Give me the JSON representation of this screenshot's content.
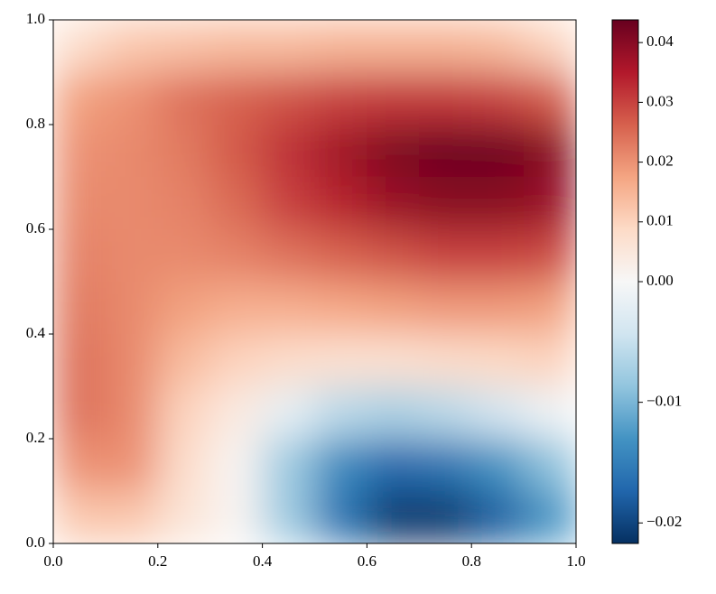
{
  "chart_data": {
    "type": "heatmap",
    "colormap": "RdBu_r",
    "x": [
      0.05,
      0.15,
      0.25,
      0.35,
      0.45,
      0.55,
      0.65,
      0.75,
      0.85,
      0.95
    ],
    "y": [
      0.95,
      0.85,
      0.75,
      0.65,
      0.55,
      0.45,
      0.35,
      0.25,
      0.15,
      0.05
    ],
    "z": [
      [
        0.008,
        0.012,
        0.013,
        0.014,
        0.014,
        0.015,
        0.015,
        0.015,
        0.014,
        0.01
      ],
      [
        0.018,
        0.02,
        0.024,
        0.026,
        0.028,
        0.03,
        0.031,
        0.031,
        0.03,
        0.027
      ],
      [
        0.02,
        0.021,
        0.023,
        0.027,
        0.032,
        0.037,
        0.041,
        0.043,
        0.043,
        0.04
      ],
      [
        0.021,
        0.021,
        0.022,
        0.025,
        0.03,
        0.034,
        0.038,
        0.04,
        0.04,
        0.038
      ],
      [
        0.022,
        0.021,
        0.021,
        0.022,
        0.024,
        0.026,
        0.028,
        0.03,
        0.03,
        0.029
      ],
      [
        0.023,
        0.021,
        0.018,
        0.016,
        0.016,
        0.017,
        0.018,
        0.019,
        0.019,
        0.018
      ],
      [
        0.024,
        0.021,
        0.014,
        0.01,
        0.008,
        0.007,
        0.007,
        0.008,
        0.009,
        0.01
      ],
      [
        0.024,
        0.021,
        0.01,
        0.004,
        -0.002,
        -0.006,
        -0.007,
        -0.006,
        -0.004,
        -0.001
      ],
      [
        0.02,
        0.02,
        0.008,
        0.001,
        -0.008,
        -0.014,
        -0.017,
        -0.016,
        -0.013,
        -0.009
      ],
      [
        0.012,
        0.012,
        0.006,
        0.001,
        -0.008,
        -0.016,
        -0.021,
        -0.021,
        -0.018,
        -0.013
      ]
    ],
    "xlim": [
      0,
      1
    ],
    "ylim": [
      0,
      1
    ],
    "xticks": [
      {
        "value": 0,
        "label": "0.0"
      },
      0.2,
      0.4,
      0.6,
      0.8,
      {
        "value": 1,
        "label": "1.0"
      }
    ],
    "yticks": [
      {
        "value": 0,
        "label": "0.0"
      },
      0.2,
      0.4,
      0.6,
      0.8,
      {
        "value": 1,
        "label": "1.0"
      }
    ],
    "clim": [
      -0.0217,
      0.0438
    ],
    "vcenter": 0,
    "cticks": [
      {
        "value": -0.02,
        "label": "−0.02"
      },
      {
        "value": -0.01,
        "label": "−0.01"
      },
      {
        "value": 0,
        "label": "0.00"
      },
      0.01,
      0.02,
      0.03,
      0.04
    ]
  }
}
